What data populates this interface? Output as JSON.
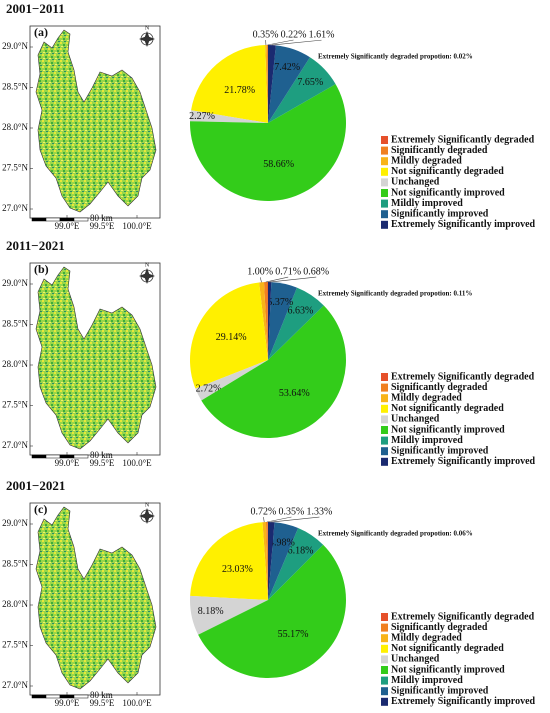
{
  "chart_data": [
    {
      "type": "pie",
      "title": "2001−2011",
      "panel_label": "(a)",
      "annotation": "Extremely Significantly degraded propotion: 0.02%",
      "categories": [
        "Extremely Significantly degraded",
        "Significantly degraded",
        "Mildly degraded",
        "Not significantly degraded",
        "Unchanged",
        "Not significantly improved",
        "Mildly improved",
        "Significantly improved",
        "Extremely Significantly improved"
      ],
      "values": [
        0.02,
        0.22,
        0.35,
        21.78,
        2.27,
        58.66,
        7.65,
        7.42,
        1.61
      ],
      "value_labels": [
        null,
        "0.22%",
        "0.35%",
        "21.78%",
        "2.27%",
        "58.66%",
        "7.65%",
        "7.42%",
        "1.61%"
      ],
      "colors": [
        "#e6502a",
        "#f08020",
        "#f8b418",
        "#fff000",
        "#d4d4d4",
        "#33cc1a",
        "#1e9e80",
        "#1f6090",
        "#1a2a70"
      ],
      "map": {
        "lat_labels": [
          "29.0°N",
          "28.5°N",
          "28.0°N",
          "27.5°N",
          "27.0°N"
        ],
        "lon_labels": [
          "99.0°E",
          "99.5°E",
          "100.0°E"
        ],
        "scale_label": "80 km",
        "north": "N"
      }
    },
    {
      "type": "pie",
      "title": "2011−2021",
      "panel_label": "(b)",
      "annotation": "Extremely Significantly degraded propotion: 0.11%",
      "categories": [
        "Extremely Significantly degraded",
        "Significantly degraded",
        "Mildly degraded",
        "Not significantly degraded",
        "Unchanged",
        "Not significantly improved",
        "Mildly improved",
        "Significantly improved",
        "Extremely Significantly improved"
      ],
      "values": [
        0.11,
        0.71,
        1.0,
        29.14,
        2.72,
        53.64,
        6.63,
        5.37,
        0.68
      ],
      "value_labels": [
        null,
        "0.71%",
        "1.00%",
        "29.14%",
        "2.72%",
        "53.64%",
        "6.63%",
        "5.37%",
        "0.68%"
      ],
      "colors": [
        "#e6502a",
        "#f08020",
        "#f8b418",
        "#fff000",
        "#d4d4d4",
        "#33cc1a",
        "#1e9e80",
        "#1f6090",
        "#1a2a70"
      ],
      "map": {
        "lat_labels": [
          "29.0°N",
          "28.5°N",
          "28.0°N",
          "27.5°N",
          "27.0°N"
        ],
        "lon_labels": [
          "99.0°E",
          "99.5°E",
          "100.0°E"
        ],
        "scale_label": "80 km",
        "north": "N"
      }
    },
    {
      "type": "pie",
      "title": "2001−2021",
      "panel_label": "(c)",
      "annotation": "Extremely Significantly degraded propotion: 0.06%",
      "categories": [
        "Extremely Significantly degraded",
        "Significantly degraded",
        "Mildly degraded",
        "Not significantly degraded",
        "Unchanged",
        "Not significantly improved",
        "Mildly improved",
        "Significantly improved",
        "Extremely Significantly improved"
      ],
      "values": [
        0.06,
        0.35,
        0.72,
        23.03,
        8.18,
        55.17,
        6.18,
        4.98,
        1.33
      ],
      "value_labels": [
        null,
        "0.35%",
        "0.72%",
        "23.03%",
        "8.18%",
        "55.17%",
        "6.18%",
        "4.98%",
        "1.33%"
      ],
      "colors": [
        "#e6502a",
        "#f08020",
        "#f8b418",
        "#fff000",
        "#d4d4d4",
        "#33cc1a",
        "#1e9e80",
        "#1f6090",
        "#1a2a70"
      ],
      "map": {
        "lat_labels": [
          "29.0°N",
          "28.5°N",
          "28.0°N",
          "27.5°N",
          "27.0°N"
        ],
        "lon_labels": [
          "99.0°E",
          "99.5°E",
          "100.0°E"
        ],
        "scale_label": "80 km",
        "north": "N"
      }
    }
  ]
}
